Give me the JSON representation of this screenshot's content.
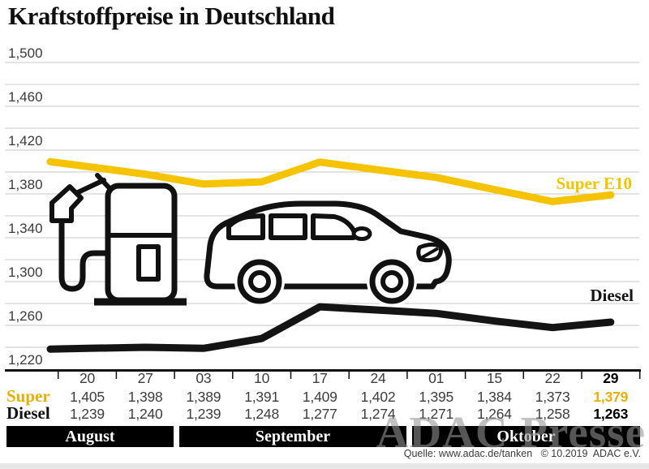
{
  "title": "Kraftstoffpreise in Deutschland",
  "watermark": "ADAC Presse",
  "source": "Quelle: www.adac.de/tanken   © 10.2019  ADAC e.V.",
  "colors": {
    "super_line": "#F6C300",
    "super_text": "#E9AF07",
    "diesel": "#141414",
    "grid": "#c9c9c9",
    "axis": "#111111",
    "label_text": "#3b3b3b"
  },
  "chart_data": {
    "type": "line",
    "x_dates": [
      "20",
      "27",
      "03",
      "10",
      "17",
      "24",
      "01",
      "15",
      "22",
      "29"
    ],
    "months": [
      {
        "label": "August",
        "columns": 2
      },
      {
        "label": "September",
        "columns": 4
      },
      {
        "label": "Oktober",
        "columns": 4
      }
    ],
    "series": [
      {
        "name": "Super E10",
        "key": "super",
        "values": [
          1.405,
          1.398,
          1.389,
          1.391,
          1.409,
          1.402,
          1.395,
          1.384,
          1.373,
          1.379
        ]
      },
      {
        "name": "Diesel",
        "key": "diesel",
        "values": [
          1.239,
          1.24,
          1.239,
          1.248,
          1.277,
          1.274,
          1.271,
          1.264,
          1.258,
          1.263
        ]
      }
    ],
    "ylim": [
      1.22,
      1.5
    ],
    "grid_step": 0.02,
    "ytick_label_step": 0.04,
    "y_labels": [
      "1,500",
      "1,460",
      "1,420",
      "1,380",
      "1,340",
      "1,300",
      "1,260",
      "1,220"
    ],
    "grid": true,
    "legend_position": "inline-right"
  },
  "table": {
    "rows": [
      {
        "label": "Super",
        "values": [
          "1,405",
          "1,398",
          "1,389",
          "1,391",
          "1,409",
          "1,402",
          "1,395",
          "1,384",
          "1,373",
          "1,379"
        ]
      },
      {
        "label": "Diesel",
        "values": [
          "1,239",
          "1,240",
          "1,239",
          "1,248",
          "1,277",
          "1,274",
          "1,271",
          "1,264",
          "1,258",
          "1,263"
        ]
      }
    ]
  }
}
